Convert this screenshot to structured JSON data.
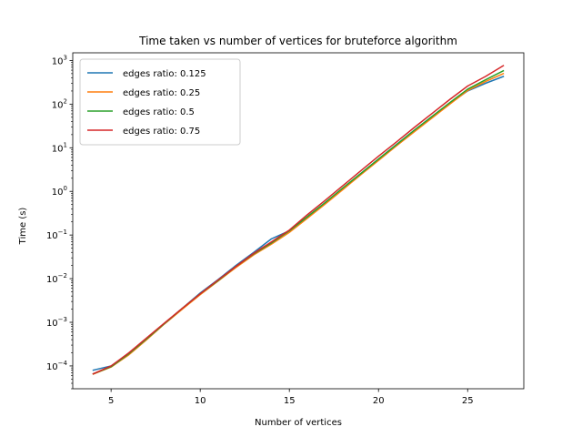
{
  "chart_data": {
    "type": "line",
    "title": "Time taken vs number of vertices for bruteforce algorithm",
    "xlabel": "Number of vertices",
    "ylabel": "Time (s)",
    "x_scale": "linear",
    "y_scale": "log",
    "xlim": [
      2.85,
      28.15
    ],
    "ylim": [
      3e-05,
      1500
    ],
    "x_ticks": [
      5,
      10,
      15,
      20,
      25
    ],
    "y_ticks": [
      {
        "value": 0.0001,
        "base": "10",
        "exp": "−4"
      },
      {
        "value": 0.001,
        "base": "10",
        "exp": "−3"
      },
      {
        "value": 0.01,
        "base": "10",
        "exp": "−2"
      },
      {
        "value": 0.1,
        "base": "10",
        "exp": "−1"
      },
      {
        "value": 1,
        "base": "10",
        "exp": "0"
      },
      {
        "value": 10,
        "base": "10",
        "exp": "1"
      },
      {
        "value": 100,
        "base": "10",
        "exp": "2"
      },
      {
        "value": 1000,
        "base": "10",
        "exp": "3"
      }
    ],
    "grid": false,
    "legend_position": "top-left",
    "x": [
      4,
      5,
      6,
      7,
      8,
      9,
      10,
      11,
      12,
      13,
      14,
      15,
      16,
      17,
      18,
      19,
      20,
      21,
      22,
      23,
      24,
      25,
      26,
      27
    ],
    "series": [
      {
        "name": "edges ratio: 0.125",
        "color": "#1f77b4",
        "values": [
          8e-05,
          0.0001,
          0.00019,
          0.00042,
          0.00095,
          0.0021,
          0.0047,
          0.0095,
          0.02,
          0.04,
          0.082,
          0.125,
          0.26,
          0.55,
          1.18,
          2.55,
          5.5,
          11.8,
          25,
          52,
          105,
          200,
          300,
          430
        ]
      },
      {
        "name": "edges ratio: 0.25",
        "color": "#ff7f0e",
        "values": [
          6.5e-05,
          9.4e-05,
          0.00018,
          0.0004,
          0.00092,
          0.002,
          0.0043,
          0.0088,
          0.018,
          0.035,
          0.062,
          0.115,
          0.24,
          0.51,
          1.1,
          2.4,
          5.1,
          11,
          23,
          48,
          100,
          205,
          330,
          500
        ]
      },
      {
        "name": "edges ratio: 0.5",
        "color": "#2ca02c",
        "values": [
          6.6e-05,
          9.6e-05,
          0.00019,
          0.00042,
          0.00094,
          0.0021,
          0.0045,
          0.009,
          0.019,
          0.037,
          0.066,
          0.125,
          0.26,
          0.55,
          1.2,
          2.55,
          5.5,
          11.7,
          25,
          52,
          108,
          220,
          360,
          580
        ]
      },
      {
        "name": "edges ratio: 0.75",
        "color": "#d62728",
        "values": [
          6.6e-05,
          0.0001,
          0.0002,
          0.00044,
          0.00097,
          0.0021,
          0.0045,
          0.0093,
          0.019,
          0.038,
          0.07,
          0.13,
          0.29,
          0.62,
          1.35,
          2.95,
          6.4,
          13.5,
          29,
          61,
          128,
          260,
          430,
          760
        ]
      }
    ]
  }
}
